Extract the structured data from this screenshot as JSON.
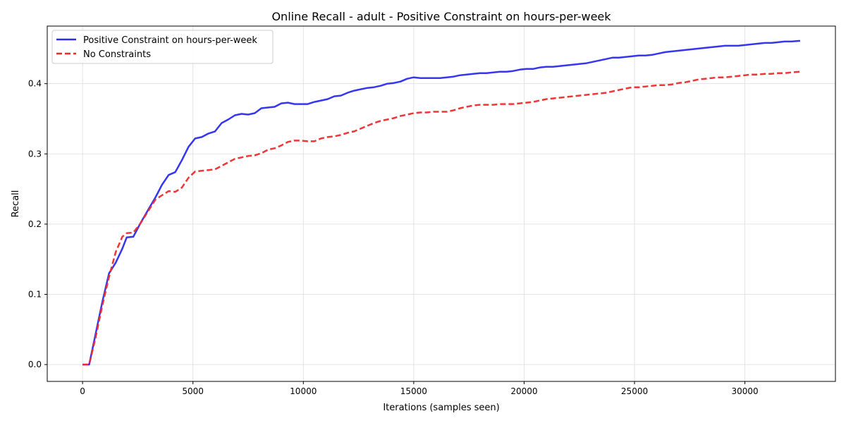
{
  "chart_data": {
    "type": "line",
    "title": "Online Recall - adult - Positive Constraint on hours-per-week",
    "xlabel": "Iterations (samples seen)",
    "ylabel": "Recall",
    "xlim": [
      -1600,
      34100
    ],
    "ylim": [
      -0.024,
      0.482
    ],
    "x_ticks": [
      0,
      5000,
      10000,
      15000,
      20000,
      25000,
      30000
    ],
    "y_ticks": [
      0.0,
      0.1,
      0.2,
      0.3,
      0.4
    ],
    "x_tick_labels": [
      "0",
      "5000",
      "10000",
      "15000",
      "20000",
      "25000",
      "30000"
    ],
    "y_tick_labels": [
      "0.0",
      "0.1",
      "0.2",
      "0.3",
      "0.4"
    ],
    "grid": true,
    "legend_position": "top-left",
    "series": [
      {
        "name": "Positive Constraint on hours-per-week",
        "color": "#2b2bee",
        "style": "solid",
        "x": [
          0,
          300,
          600,
          900,
          1200,
          1500,
          1800,
          2000,
          2300,
          2600,
          3000,
          3300,
          3600,
          3900,
          4200,
          4500,
          4800,
          5100,
          5400,
          5700,
          6000,
          6300,
          6600,
          6900,
          7200,
          7500,
          7800,
          8100,
          8400,
          8700,
          9000,
          9300,
          9600,
          9900,
          10200,
          10500,
          10800,
          11100,
          11400,
          11700,
          12000,
          12300,
          12600,
          12900,
          13200,
          13500,
          13800,
          14100,
          14400,
          14700,
          15000,
          15300,
          15600,
          15900,
          16200,
          16500,
          16800,
          17100,
          17400,
          17700,
          18000,
          18300,
          18600,
          18900,
          19200,
          19500,
          19800,
          20100,
          20400,
          20700,
          21000,
          21300,
          21600,
          21900,
          22200,
          22500,
          22800,
          23100,
          23400,
          23700,
          24000,
          24300,
          24600,
          24900,
          25200,
          25500,
          25800,
          26100,
          26400,
          26700,
          27000,
          27300,
          27600,
          27900,
          28200,
          28500,
          28800,
          29100,
          29400,
          29700,
          30000,
          30300,
          30600,
          30900,
          31200,
          31500,
          31800,
          32100,
          32500
        ],
        "y": [
          0.0,
          0.0,
          0.045,
          0.09,
          0.13,
          0.145,
          0.165,
          0.181,
          0.182,
          0.2,
          0.222,
          0.238,
          0.256,
          0.27,
          0.274,
          0.291,
          0.31,
          0.322,
          0.324,
          0.329,
          0.332,
          0.344,
          0.349,
          0.355,
          0.357,
          0.356,
          0.358,
          0.365,
          0.366,
          0.367,
          0.372,
          0.373,
          0.371,
          0.371,
          0.371,
          0.374,
          0.376,
          0.378,
          0.382,
          0.383,
          0.387,
          0.39,
          0.392,
          0.394,
          0.395,
          0.397,
          0.4,
          0.401,
          0.403,
          0.407,
          0.409,
          0.408,
          0.408,
          0.408,
          0.408,
          0.409,
          0.41,
          0.412,
          0.413,
          0.414,
          0.415,
          0.415,
          0.416,
          0.417,
          0.417,
          0.418,
          0.42,
          0.421,
          0.421,
          0.423,
          0.424,
          0.424,
          0.425,
          0.426,
          0.427,
          0.428,
          0.429,
          0.431,
          0.433,
          0.435,
          0.437,
          0.437,
          0.438,
          0.439,
          0.44,
          0.44,
          0.441,
          0.443,
          0.445,
          0.446,
          0.447,
          0.448,
          0.449,
          0.45,
          0.451,
          0.452,
          0.453,
          0.454,
          0.454,
          0.454,
          0.455,
          0.456,
          0.457,
          0.458,
          0.458,
          0.459,
          0.46,
          0.46,
          0.461
        ]
      },
      {
        "name": "No Constraints",
        "color": "#ee2b2b",
        "style": "dashed",
        "x": [
          0,
          300,
          600,
          900,
          1200,
          1500,
          1800,
          2000,
          2300,
          2600,
          3000,
          3300,
          3600,
          3900,
          4200,
          4500,
          4800,
          5100,
          5400,
          5700,
          6000,
          6300,
          6600,
          6900,
          7200,
          7500,
          7800,
          8100,
          8400,
          8700,
          9000,
          9300,
          9600,
          9900,
          10200,
          10500,
          10800,
          11100,
          11400,
          11700,
          12000,
          12300,
          12600,
          12900,
          13200,
          13500,
          13800,
          14100,
          14400,
          14700,
          15000,
          15300,
          15600,
          15900,
          16200,
          16500,
          16800,
          17100,
          17400,
          17700,
          18000,
          18300,
          18600,
          18900,
          19200,
          19500,
          19800,
          20100,
          20400,
          20700,
          21000,
          21300,
          21600,
          21900,
          22200,
          22500,
          22800,
          23100,
          23400,
          23700,
          24000,
          24300,
          24600,
          24900,
          25200,
          25500,
          25800,
          26100,
          26400,
          26700,
          27000,
          27300,
          27600,
          27900,
          28200,
          28500,
          28800,
          29100,
          29400,
          29700,
          30000,
          30300,
          30600,
          30900,
          31200,
          31500,
          31800,
          32100,
          32500
        ],
        "y": [
          0.0,
          0.0,
          0.04,
          0.085,
          0.125,
          0.16,
          0.182,
          0.187,
          0.188,
          0.2,
          0.22,
          0.235,
          0.241,
          0.247,
          0.246,
          0.252,
          0.266,
          0.275,
          0.276,
          0.277,
          0.278,
          0.283,
          0.288,
          0.293,
          0.295,
          0.297,
          0.298,
          0.301,
          0.306,
          0.308,
          0.312,
          0.317,
          0.319,
          0.319,
          0.318,
          0.318,
          0.322,
          0.324,
          0.325,
          0.327,
          0.33,
          0.332,
          0.336,
          0.34,
          0.344,
          0.347,
          0.349,
          0.351,
          0.354,
          0.356,
          0.358,
          0.359,
          0.359,
          0.36,
          0.36,
          0.36,
          0.362,
          0.365,
          0.367,
          0.369,
          0.37,
          0.37,
          0.37,
          0.371,
          0.371,
          0.371,
          0.372,
          0.373,
          0.374,
          0.376,
          0.378,
          0.379,
          0.38,
          0.381,
          0.382,
          0.383,
          0.384,
          0.385,
          0.386,
          0.387,
          0.389,
          0.391,
          0.393,
          0.395,
          0.395,
          0.396,
          0.397,
          0.398,
          0.398,
          0.399,
          0.401,
          0.402,
          0.404,
          0.406,
          0.407,
          0.408,
          0.409,
          0.409,
          0.41,
          0.411,
          0.412,
          0.413,
          0.413,
          0.414,
          0.414,
          0.415,
          0.415,
          0.416,
          0.417
        ]
      }
    ]
  }
}
